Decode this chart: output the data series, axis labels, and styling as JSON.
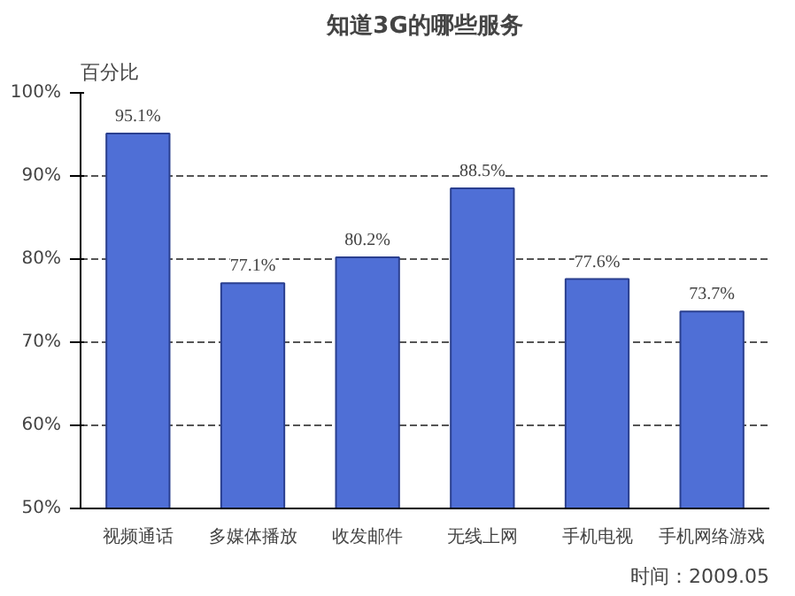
{
  "chart_data": {
    "type": "bar",
    "title": "知道3G的哪些服务",
    "ylabel": "百分比",
    "categories": [
      "视频通话",
      "多媒体播放",
      "收发邮件",
      "无线上网",
      "手机电视",
      "手机网络游戏"
    ],
    "values": [
      95.1,
      77.1,
      80.2,
      88.5,
      77.6,
      73.7
    ],
    "value_labels": [
      "95.1%",
      "77.1%",
      "80.2%",
      "88.5%",
      "77.6%",
      "73.7%"
    ],
    "color": "#4f6fd6",
    "ylim": [
      50,
      100
    ],
    "yticks": [
      {
        "value": 50,
        "label": "50%"
      },
      {
        "value": 60,
        "label": "60%"
      },
      {
        "value": 70,
        "label": "70%"
      },
      {
        "value": 80,
        "label": "80%"
      },
      {
        "value": 90,
        "label": "90%"
      },
      {
        "value": 100,
        "label": "100%"
      }
    ],
    "grid": "y",
    "annotations": [
      "时间：2009.05"
    ]
  }
}
